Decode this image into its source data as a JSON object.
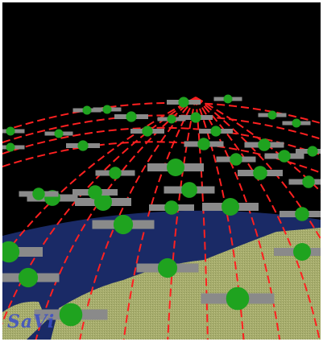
{
  "image": {
    "subject": "satellites",
    "watermark": "SaVi",
    "colors": {
      "space": "#000000",
      "ocean": "#1a2a66",
      "land": "#a6ac6c",
      "orbit": "#ff2020",
      "satellite": "#1fa31f",
      "panel": "#8a8a8a"
    }
  }
}
